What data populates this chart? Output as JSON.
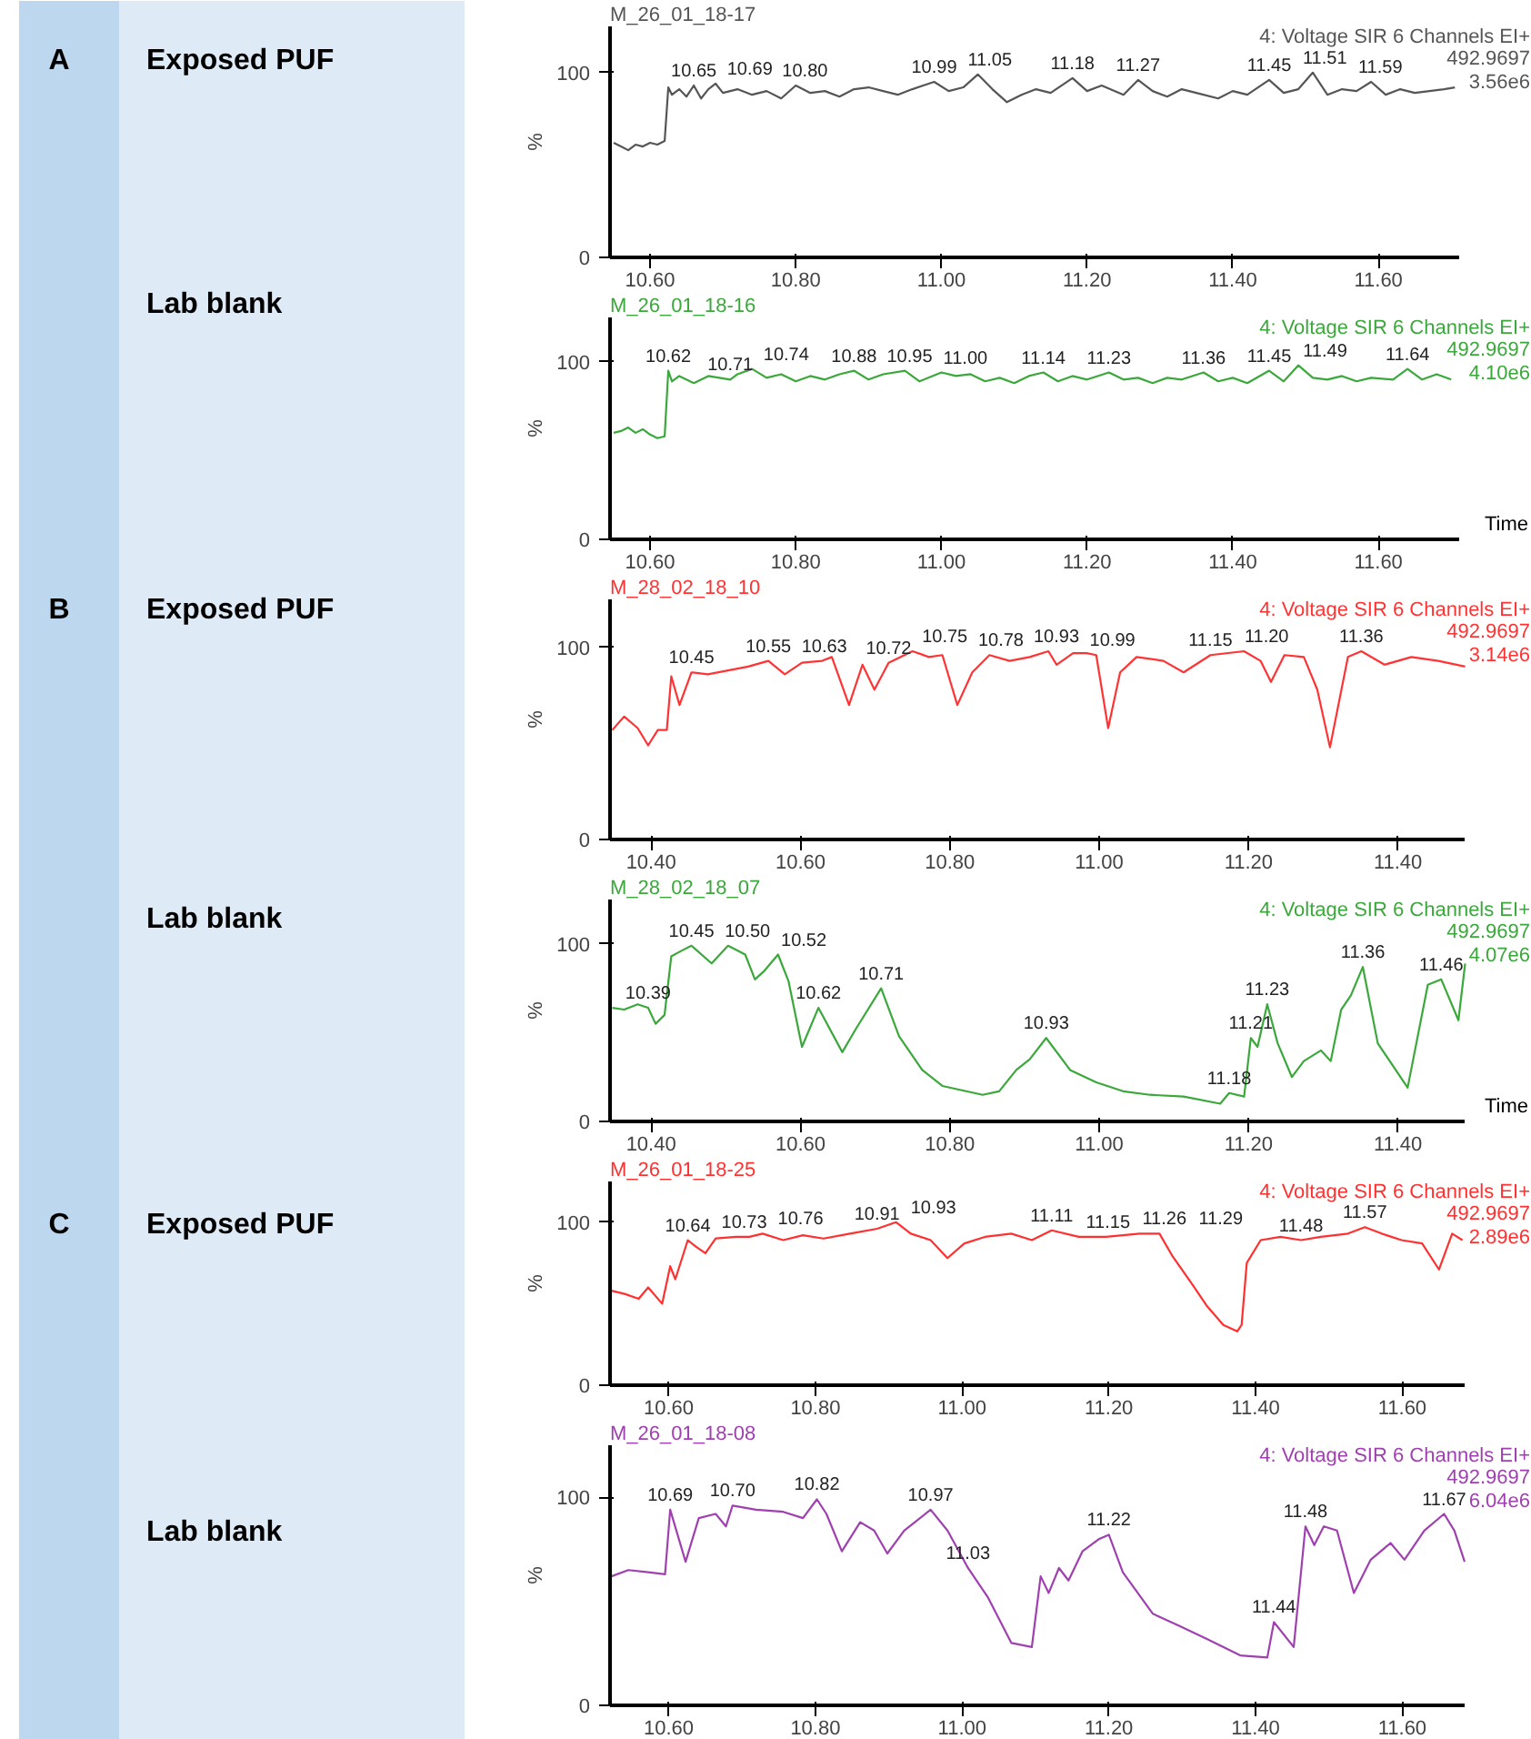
{
  "chart_data": [
    {
      "type": "other",
      "annotations": [
        "A",
        "Exposed PUF",
        "Lab blank",
        "B",
        "Exposed PUF",
        "Lab blank",
        "C",
        "Exposed PUF",
        "Lab blank"
      ]
    },
    {
      "type": "line",
      "title": "M_26_01_18-17",
      "subtitle": "4: Voltage SIR 6 Channels EI+",
      "ylabel": "%",
      "grid": false,
      "xlim": [
        10.545,
        11.71
      ],
      "ylim": [
        0,
        125
      ],
      "xticks": [
        {
          "value": 10.6,
          "label": "10.60"
        },
        {
          "value": 10.8,
          "label": "10.80"
        },
        {
          "value": 11.0,
          "label": "11.00"
        },
        {
          "value": 11.2,
          "label": "11.20"
        },
        {
          "value": 11.4,
          "label": "11.40"
        },
        {
          "value": 11.6,
          "label": "11.60"
        }
      ],
      "yticks": [
        0,
        100
      ],
      "x": [
        10.55,
        10.56,
        10.57,
        10.58,
        10.59,
        10.6,
        10.61,
        10.62,
        10.625,
        10.63,
        10.64,
        10.65,
        10.66,
        10.67,
        10.68,
        10.69,
        10.7,
        10.72,
        10.74,
        10.76,
        10.78,
        10.8,
        10.82,
        10.84,
        10.86,
        10.88,
        10.9,
        10.92,
        10.94,
        10.96,
        10.99,
        11.01,
        11.03,
        11.05,
        11.07,
        11.09,
        11.11,
        11.13,
        11.15,
        11.18,
        11.2,
        11.22,
        11.25,
        11.27,
        11.29,
        11.31,
        11.33,
        11.35,
        11.38,
        11.4,
        11.42,
        11.45,
        11.47,
        11.49,
        11.51,
        11.53,
        11.55,
        11.57,
        11.59,
        11.61,
        11.63,
        11.65,
        11.67,
        11.69,
        11.705
      ],
      "series": [
        {
          "color": "#555555",
          "values": [
            62,
            60,
            58,
            61,
            60,
            62,
            61,
            63,
            92,
            88,
            91,
            87,
            93,
            86,
            91,
            94,
            89,
            91,
            88,
            90,
            86,
            93,
            89,
            90,
            87,
            91,
            92,
            90,
            88,
            91,
            95,
            90,
            92,
            99,
            91,
            84,
            88,
            91,
            89,
            97,
            90,
            93,
            88,
            96,
            90,
            87,
            91,
            89,
            86,
            90,
            88,
            96,
            89,
            91,
            100,
            88,
            91,
            90,
            95,
            88,
            91,
            89,
            90,
            91,
            92
          ]
        }
      ],
      "annotations": [
        "492.9697",
        "3.56e6",
        {
          "text": "10.65",
          "x": 10.66,
          "y": 93
        },
        {
          "text": "10.69",
          "x": 10.69,
          "y": 94
        },
        {
          "text": "10.80",
          "x": 10.8,
          "y": 93
        },
        {
          "text": "10.99",
          "x": 10.99,
          "y": 95
        },
        {
          "text": "11.05",
          "x": 11.05,
          "y": 99
        },
        {
          "text": "11.18",
          "x": 11.18,
          "y": 97
        },
        {
          "text": "11.27",
          "x": 11.27,
          "y": 96
        },
        {
          "text": "11.45",
          "x": 11.45,
          "y": 96
        },
        {
          "text": "11.51",
          "x": 11.51,
          "y": 100
        },
        {
          "text": "11.59",
          "x": 11.59,
          "y": 95
        }
      ]
    },
    {
      "type": "line",
      "title": "M_26_01_18-16",
      "subtitle": "4: Voltage SIR 6 Channels EI+",
      "ylabel": "%",
      "xlabel": "Time",
      "grid": false,
      "xlim": [
        10.545,
        11.71
      ],
      "ylim": [
        0,
        125
      ],
      "xticks": [
        {
          "value": 10.6,
          "label": "10.60"
        },
        {
          "value": 10.8,
          "label": "10.80"
        },
        {
          "value": 11.0,
          "label": "11.00"
        },
        {
          "value": 11.2,
          "label": "11.20"
        },
        {
          "value": 11.4,
          "label": "11.40"
        },
        {
          "value": 11.6,
          "label": "11.60"
        }
      ],
      "yticks": [
        0,
        100
      ],
      "x": [
        10.55,
        10.56,
        10.57,
        10.58,
        10.59,
        10.6,
        10.61,
        10.62,
        10.625,
        10.63,
        10.64,
        10.66,
        10.68,
        10.71,
        10.72,
        10.74,
        10.76,
        10.78,
        10.8,
        10.82,
        10.84,
        10.86,
        10.88,
        10.9,
        10.92,
        10.95,
        10.97,
        11.0,
        11.02,
        11.04,
        11.06,
        11.08,
        11.1,
        11.12,
        11.14,
        11.16,
        11.18,
        11.2,
        11.23,
        11.25,
        11.27,
        11.29,
        11.31,
        11.33,
        11.36,
        11.38,
        11.4,
        11.42,
        11.45,
        11.47,
        11.49,
        11.51,
        11.53,
        11.55,
        11.57,
        11.59,
        11.62,
        11.64,
        11.66,
        11.68,
        11.7
      ],
      "series": [
        {
          "color": "#3aa83a",
          "values": [
            60,
            61,
            63,
            60,
            62,
            59,
            57,
            58,
            95,
            89,
            92,
            88,
            92,
            90,
            93,
            96,
            91,
            93,
            89,
            92,
            90,
            93,
            95,
            90,
            93,
            95,
            89,
            94,
            92,
            93,
            89,
            91,
            88,
            92,
            94,
            89,
            92,
            90,
            94,
            90,
            91,
            88,
            91,
            90,
            94,
            89,
            91,
            88,
            95,
            89,
            98,
            91,
            90,
            92,
            89,
            91,
            90,
            96,
            90,
            93,
            90
          ]
        }
      ],
      "annotations": [
        "492.9697",
        "4.10e6",
        {
          "text": "10.62",
          "x": 10.625,
          "y": 95
        },
        {
          "text": "10.71",
          "x": 10.71,
          "y": 90
        },
        {
          "text": "10.74",
          "x": 10.74,
          "y": 96
        },
        {
          "text": "10.88",
          "x": 10.88,
          "y": 95
        },
        {
          "text": "10.95",
          "x": 10.95,
          "y": 95
        },
        {
          "text": "11.00",
          "x": 11.0,
          "y": 94
        },
        {
          "text": "11.14",
          "x": 11.14,
          "y": 94
        },
        {
          "text": "11.23",
          "x": 11.23,
          "y": 94
        },
        {
          "text": "11.36",
          "x": 11.36,
          "y": 94
        },
        {
          "text": "11.45",
          "x": 11.45,
          "y": 95
        },
        {
          "text": "11.49",
          "x": 11.49,
          "y": 98
        },
        {
          "text": "11.64",
          "x": 11.64,
          "y": 96
        }
      ]
    },
    {
      "type": "line",
      "title": "M_28_02_18_10",
      "subtitle": "4: Voltage SIR 6 Channels EI+",
      "ylabel": "%",
      "grid": false,
      "xlim": [
        10.345,
        11.49
      ],
      "ylim": [
        0,
        125
      ],
      "xticks": [
        {
          "value": 10.4,
          "label": "10.40"
        },
        {
          "value": 10.6,
          "label": "10.60"
        },
        {
          "value": 10.8,
          "label": "10.80"
        },
        {
          "value": 11.0,
          "label": "11.00"
        },
        {
          "value": 11.2,
          "label": "11.20"
        },
        {
          "value": 11.4,
          "label": "11.40"
        }
      ],
      "yticks": [
        0,
        100
      ],
      "x": [
        10.348,
        10.364,
        10.382,
        10.396,
        10.409,
        10.421,
        10.427,
        10.438,
        10.454,
        10.476,
        10.503,
        10.53,
        10.557,
        10.579,
        10.602,
        10.629,
        10.642,
        10.665,
        10.683,
        10.699,
        10.718,
        10.75,
        10.772,
        10.79,
        10.81,
        10.83,
        10.853,
        10.88,
        10.907,
        10.932,
        10.943,
        10.965,
        10.983,
        10.996,
        11.012,
        11.028,
        11.05,
        11.086,
        11.113,
        11.149,
        11.194,
        11.216,
        11.23,
        11.248,
        11.274,
        11.292,
        11.309,
        11.333,
        11.351,
        11.382,
        11.418,
        11.454,
        11.49
      ],
      "series": [
        {
          "color": "#ff3333",
          "values": [
            57,
            64,
            58,
            49,
            57,
            57,
            85,
            70,
            87,
            86,
            88,
            90,
            93,
            86,
            92,
            93,
            95,
            70,
            91,
            78,
            92,
            98,
            95,
            96,
            70,
            87,
            96,
            93,
            95,
            98,
            91,
            97,
            97,
            96,
            58,
            87,
            95,
            93,
            87,
            96,
            98,
            93,
            82,
            96,
            95,
            78,
            48,
            95,
            98,
            91,
            95,
            93,
            90
          ]
        }
      ],
      "annotations": [
        "492.9697",
        "3.14e6",
        {
          "text": "10.45",
          "x": 10.454,
          "y": 87
        },
        {
          "text": "10.55",
          "x": 10.557,
          "y": 93
        },
        {
          "text": "10.63",
          "x": 10.629,
          "y": 93
        },
        {
          "text": "10.72",
          "x": 10.718,
          "y": 92
        },
        {
          "text": "10.75",
          "x": 10.75,
          "y": 98
        },
        {
          "text": "10.78",
          "x": 10.79,
          "y": 96
        },
        {
          "text": "10.93",
          "x": 10.932,
          "y": 98
        },
        {
          "text": "10.99",
          "x": 10.996,
          "y": 96
        },
        {
          "text": "11.15",
          "x": 11.149,
          "y": 96
        },
        {
          "text": "11.20",
          "x": 11.194,
          "y": 98
        },
        {
          "text": "11.36",
          "x": 11.351,
          "y": 98
        }
      ]
    },
    {
      "type": "line",
      "title": "M_28_02_18_07",
      "subtitle": "4: Voltage SIR 6 Channels EI+",
      "ylabel": "%",
      "xlabel": "Time",
      "grid": false,
      "xlim": [
        10.345,
        11.49
      ],
      "ylim": [
        0,
        125
      ],
      "xticks": [
        {
          "value": 10.4,
          "label": "10.40"
        },
        {
          "value": 10.6,
          "label": "10.60"
        },
        {
          "value": 10.8,
          "label": "10.80"
        },
        {
          "value": 11.0,
          "label": "11.00"
        },
        {
          "value": 11.2,
          "label": "11.20"
        },
        {
          "value": 11.4,
          "label": "11.40"
        }
      ],
      "yticks": [
        0,
        100
      ],
      "x": [
        10.348,
        10.364,
        10.382,
        10.396,
        10.406,
        10.418,
        10.427,
        10.44,
        10.454,
        10.481,
        10.503,
        10.526,
        10.539,
        10.552,
        10.57,
        10.584,
        10.602,
        10.624,
        10.656,
        10.674,
        10.708,
        10.732,
        10.763,
        10.79,
        10.844,
        10.866,
        10.889,
        10.907,
        10.929,
        10.961,
        10.996,
        11.032,
        11.068,
        11.113,
        11.162,
        11.174,
        11.194,
        11.203,
        11.212,
        11.225,
        11.239,
        11.258,
        11.274,
        11.297,
        11.31,
        11.324,
        11.337,
        11.353,
        11.373,
        11.413,
        11.44,
        11.458,
        11.481,
        11.49
      ],
      "series": [
        {
          "color": "#3aa83a",
          "values": [
            64,
            63,
            66,
            64,
            55,
            60,
            93,
            96,
            99,
            89,
            99,
            94,
            80,
            85,
            94,
            79,
            42,
            64,
            39,
            52,
            75,
            48,
            29,
            20,
            15,
            17,
            29,
            35,
            47,
            29,
            22,
            17,
            15,
            14,
            10,
            16,
            14,
            47,
            42,
            66,
            44,
            25,
            34,
            40,
            34,
            63,
            71,
            87,
            44,
            19,
            77,
            80,
            57,
            89
          ]
        }
      ],
      "annotations": [
        "492.9697",
        "4.07e6",
        {
          "text": "10.39",
          "x": 10.396,
          "y": 64
        },
        {
          "text": "10.45",
          "x": 10.454,
          "y": 99
        },
        {
          "text": "10.50",
          "x": 10.503,
          "y": 99
        },
        {
          "text": "10.52",
          "x": 10.526,
          "y": 94
        },
        {
          "text": "10.62",
          "x": 10.624,
          "y": 64
        },
        {
          "text": "10.71",
          "x": 10.708,
          "y": 75
        },
        {
          "text": "10.93",
          "x": 10.929,
          "y": 47
        },
        {
          "text": "11.18",
          "x": 11.174,
          "y": 16
        },
        {
          "text": "11.21",
          "x": 11.203,
          "y": 47
        },
        {
          "text": "11.23",
          "x": 11.225,
          "y": 66
        },
        {
          "text": "11.36",
          "x": 11.353,
          "y": 87
        },
        {
          "text": "11.46",
          "x": 11.458,
          "y": 80
        }
      ]
    },
    {
      "type": "line",
      "title": "M_26_01_18-25",
      "subtitle": "4: Voltage SIR 6 Channels EI+",
      "ylabel": "%",
      "grid": false,
      "xlim": [
        10.52,
        11.685
      ],
      "ylim": [
        0,
        125
      ],
      "xticks": [
        {
          "value": 10.6,
          "label": "10.60"
        },
        {
          "value": 10.8,
          "label": "10.80"
        },
        {
          "value": 11.0,
          "label": "11.00"
        },
        {
          "value": 11.2,
          "label": "11.20"
        },
        {
          "value": 11.4,
          "label": "11.40"
        },
        {
          "value": 11.6,
          "label": "11.60"
        }
      ],
      "yticks": [
        0,
        100
      ],
      "x": [
        10.522,
        10.54,
        10.559,
        10.572,
        10.591,
        10.602,
        10.609,
        10.626,
        10.637,
        10.65,
        10.664,
        10.692,
        10.71,
        10.728,
        10.756,
        10.783,
        10.811,
        10.847,
        10.884,
        10.91,
        10.93,
        10.957,
        10.98,
        11.003,
        11.031,
        11.067,
        11.095,
        11.122,
        11.159,
        11.196,
        11.242,
        11.269,
        11.287,
        11.315,
        11.333,
        11.356,
        11.375,
        11.381,
        11.388,
        11.407,
        11.434,
        11.462,
        11.489,
        11.526,
        11.549,
        11.572,
        11.599,
        11.627,
        11.65,
        11.668,
        11.682
      ],
      "series": [
        {
          "color": "#ff3030",
          "values": [
            58,
            56,
            53,
            60,
            50,
            73,
            65,
            89,
            85,
            81,
            90,
            91,
            91,
            93,
            89,
            92,
            90,
            93,
            96,
            100,
            93,
            89,
            78,
            87,
            91,
            93,
            89,
            95,
            91,
            91,
            93,
            93,
            79,
            61,
            49,
            37,
            33,
            37,
            75,
            89,
            91,
            89,
            91,
            93,
            97,
            93,
            89,
            87,
            71,
            93,
            89
          ]
        }
      ],
      "annotations": [
        "492.9697",
        "2.89e6",
        {
          "text": "10.64",
          "x": 10.626,
          "y": 89
        },
        {
          "text": "10.73",
          "x": 10.692,
          "y": 91
        },
        {
          "text": "10.76",
          "x": 10.728,
          "y": 93
        },
        {
          "text": "10.91",
          "x": 10.884,
          "y": 96
        },
        {
          "text": "10.93",
          "x": 10.91,
          "y": 100
        },
        {
          "text": "11.11",
          "x": 11.122,
          "y": 95
        },
        {
          "text": "11.15",
          "x": 11.159,
          "y": 91
        },
        {
          "text": "11.26",
          "x": 11.242,
          "y": 93
        },
        {
          "text": "11.29",
          "x": 11.269,
          "y": 93
        },
        {
          "text": "11.48",
          "x": 11.462,
          "y": 89
        },
        {
          "text": "11.57",
          "x": 11.549,
          "y": 97
        }
      ]
    },
    {
      "type": "line",
      "title": "M_26_01_18-08",
      "subtitle": "4: Voltage SIR 6 Channels EI+",
      "ylabel": "%",
      "grid": false,
      "xlim": [
        10.52,
        11.685
      ],
      "ylim": [
        0,
        125
      ],
      "xticks": [
        {
          "value": 10.6,
          "label": "10.60"
        },
        {
          "value": 10.8,
          "label": "10.80"
        },
        {
          "value": 11.0,
          "label": "11.00"
        },
        {
          "value": 11.2,
          "label": "11.20"
        },
        {
          "value": 11.4,
          "label": "11.40"
        },
        {
          "value": 11.6,
          "label": "11.60"
        }
      ],
      "yticks": [
        0,
        100
      ],
      "x": [
        10.522,
        10.545,
        10.572,
        10.595,
        10.602,
        10.623,
        10.641,
        10.664,
        10.678,
        10.687,
        10.719,
        10.756,
        10.783,
        10.802,
        10.815,
        10.836,
        10.861,
        10.88,
        10.898,
        10.921,
        10.957,
        10.98,
        11.008,
        11.035,
        11.067,
        11.095,
        11.107,
        11.118,
        11.132,
        11.145,
        11.164,
        11.187,
        11.2,
        11.219,
        11.26,
        11.297,
        11.333,
        11.379,
        11.416,
        11.425,
        11.452,
        11.468,
        11.48,
        11.493,
        11.511,
        11.534,
        11.557,
        11.584,
        11.603,
        11.63,
        11.657,
        11.671,
        11.685
      ],
      "series": [
        {
          "color": "#a040b0",
          "values": [
            62,
            65,
            64,
            63,
            94,
            69,
            90,
            92,
            86,
            96,
            94,
            93,
            90,
            99,
            92,
            74,
            88,
            84,
            73,
            84,
            94,
            84,
            66,
            52,
            30,
            28,
            62,
            54,
            66,
            60,
            74,
            80,
            82,
            64,
            44,
            38,
            32,
            24,
            23,
            40,
            28,
            86,
            77,
            86,
            84,
            54,
            70,
            78,
            70,
            84,
            92,
            84,
            69
          ]
        }
      ],
      "annotations": [
        "492.9697",
        "6.04e6",
        {
          "text": "10.69",
          "x": 10.602,
          "y": 94
        },
        {
          "text": "10.70",
          "x": 10.687,
          "y": 96
        },
        {
          "text": "10.82",
          "x": 10.802,
          "y": 99
        },
        {
          "text": "10.97",
          "x": 10.957,
          "y": 94
        },
        {
          "text": "11.03",
          "x": 11.008,
          "y": 66
        },
        {
          "text": "11.22",
          "x": 11.2,
          "y": 82
        },
        {
          "text": "11.44",
          "x": 11.425,
          "y": 40
        },
        {
          "text": "11.48",
          "x": 11.468,
          "y": 86
        },
        {
          "text": "11.67",
          "x": 11.657,
          "y": 92
        }
      ]
    }
  ]
}
